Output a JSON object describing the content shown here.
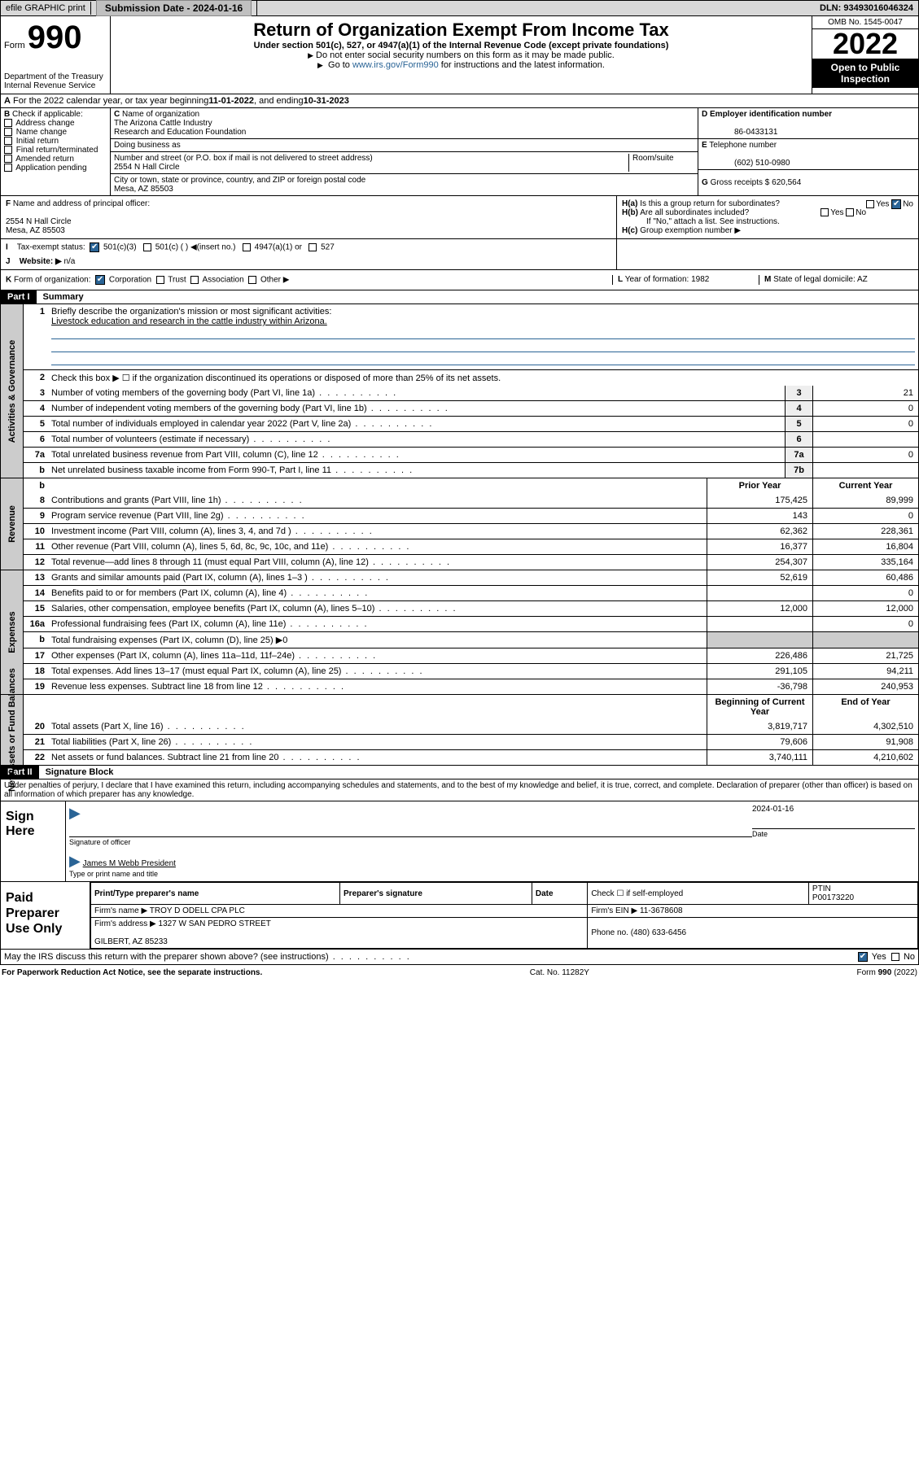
{
  "topbar": {
    "efile": "efile GRAPHIC print",
    "submission_label": "Submission Date",
    "submission_date": "2024-01-16",
    "dln_label": "DLN:",
    "dln": "93493016046324"
  },
  "header": {
    "form_label": "Form",
    "form_no": "990",
    "dept1": "Department of the Treasury",
    "dept2": "Internal Revenue Service",
    "title": "Return of Organization Exempt From Income Tax",
    "subtitle": "Under section 501(c), 527, or 4947(a)(1) of the Internal Revenue Code (except private foundations)",
    "note1": "Do not enter social security numbers on this form as it may be made public.",
    "note2_pre": "Go to ",
    "note2_link": "www.irs.gov/Form990",
    "note2_post": " for instructions and the latest information.",
    "omb": "OMB No. 1545-0047",
    "year": "2022",
    "open": "Open to Public Inspection"
  },
  "lineA": {
    "pre": "For the 2022 calendar year, or tax year beginning ",
    "begin": "11-01-2022",
    "mid": " , and ending ",
    "end": "10-31-2023"
  },
  "boxB": {
    "label": "Check if applicable:",
    "items": [
      "Address change",
      "Name change",
      "Initial return",
      "Final return/terminated",
      "Amended return",
      "Application pending"
    ]
  },
  "boxC": {
    "label": "Name of organization",
    "name1": "The Arizona Cattle Industry",
    "name2": "Research and Education Foundation",
    "dba_label": "Doing business as",
    "addr_label": "Number and street (or P.O. box if mail is not delivered to street address)",
    "room_label": "Room/suite",
    "street": "2554 N Hall Circle",
    "city_label": "City or town, state or province, country, and ZIP or foreign postal code",
    "city": "Mesa, AZ  85503"
  },
  "boxD": {
    "label": "Employer identification number",
    "ein": "86-0433131"
  },
  "boxE": {
    "label": "Telephone number",
    "phone": "(602) 510-0980"
  },
  "boxG": {
    "label": "Gross receipts $",
    "amount": "620,564"
  },
  "boxF": {
    "label": "Name and address of principal officer:",
    "addr1": "2554 N Hall Circle",
    "addr2": "Mesa, AZ  85503"
  },
  "boxH": {
    "a": "Is this a group return for subordinates?",
    "b": "Are all subordinates included?",
    "b_note": "If \"No,\" attach a list. See instructions.",
    "c": "Group exemption number ▶",
    "yes": "Yes",
    "no": "No"
  },
  "boxI": {
    "label": "Tax-exempt status:",
    "opts": [
      "501(c)(3)",
      "501(c) (   ) ◀(insert no.)",
      "4947(a)(1) or",
      "527"
    ]
  },
  "boxJ": {
    "label": "Website: ▶",
    "val": "n/a"
  },
  "boxK": {
    "label": "Form of organization:",
    "opts": [
      "Corporation",
      "Trust",
      "Association",
      "Other ▶"
    ]
  },
  "boxL": {
    "label": "Year of formation:",
    "val": "1982"
  },
  "boxM": {
    "label": "State of legal domicile:",
    "val": "AZ"
  },
  "partI": {
    "hdr": "Part I",
    "title": "Summary",
    "side1": "Activities & Governance",
    "side2": "Revenue",
    "side3": "Expenses",
    "side4": "Net Assets or Fund Balances",
    "l1_label": "Briefly describe the organization's mission or most significant activities:",
    "l1_text": "Livestock education and research in the cattle industry within Arizona.",
    "l2": "Check this box ▶ ☐  if the organization discontinued its operations or disposed of more than 25% of its net assets.",
    "lines_gov": [
      {
        "n": "3",
        "t": "Number of voting members of the governing body (Part VI, line 1a)",
        "b": "3",
        "v": "21"
      },
      {
        "n": "4",
        "t": "Number of independent voting members of the governing body (Part VI, line 1b)",
        "b": "4",
        "v": "0"
      },
      {
        "n": "5",
        "t": "Total number of individuals employed in calendar year 2022 (Part V, line 2a)",
        "b": "5",
        "v": "0"
      },
      {
        "n": "6",
        "t": "Total number of volunteers (estimate if necessary)",
        "b": "6",
        "v": ""
      },
      {
        "n": "7a",
        "t": "Total unrelated business revenue from Part VIII, column (C), line 12",
        "b": "7a",
        "v": "0"
      },
      {
        "n": "b",
        "t": "Net unrelated business taxable income from Form 990-T, Part I, line 11",
        "b": "7b",
        "v": ""
      }
    ],
    "col_prior": "Prior Year",
    "col_curr": "Current Year",
    "lines_rev": [
      {
        "n": "8",
        "t": "Contributions and grants (Part VIII, line 1h)",
        "p": "175,425",
        "c": "89,999"
      },
      {
        "n": "9",
        "t": "Program service revenue (Part VIII, line 2g)",
        "p": "143",
        "c": "0"
      },
      {
        "n": "10",
        "t": "Investment income (Part VIII, column (A), lines 3, 4, and 7d )",
        "p": "62,362",
        "c": "228,361"
      },
      {
        "n": "11",
        "t": "Other revenue (Part VIII, column (A), lines 5, 6d, 8c, 9c, 10c, and 11e)",
        "p": "16,377",
        "c": "16,804"
      },
      {
        "n": "12",
        "t": "Total revenue—add lines 8 through 11 (must equal Part VIII, column (A), line 12)",
        "p": "254,307",
        "c": "335,164"
      }
    ],
    "lines_exp": [
      {
        "n": "13",
        "t": "Grants and similar amounts paid (Part IX, column (A), lines 1–3 )",
        "p": "52,619",
        "c": "60,486"
      },
      {
        "n": "14",
        "t": "Benefits paid to or for members (Part IX, column (A), line 4)",
        "p": "",
        "c": "0"
      },
      {
        "n": "15",
        "t": "Salaries, other compensation, employee benefits (Part IX, column (A), lines 5–10)",
        "p": "12,000",
        "c": "12,000"
      },
      {
        "n": "16a",
        "t": "Professional fundraising fees (Part IX, column (A), line 11e)",
        "p": "",
        "c": "0"
      },
      {
        "n": "b",
        "t": "Total fundraising expenses (Part IX, column (D), line 25) ▶0",
        "p": "",
        "c": "",
        "noval": true
      },
      {
        "n": "17",
        "t": "Other expenses (Part IX, column (A), lines 11a–11d, 11f–24e)",
        "p": "226,486",
        "c": "21,725"
      },
      {
        "n": "18",
        "t": "Total expenses. Add lines 13–17 (must equal Part IX, column (A), line 25)",
        "p": "291,105",
        "c": "94,211"
      },
      {
        "n": "19",
        "t": "Revenue less expenses. Subtract line 18 from line 12",
        "p": "-36,798",
        "c": "240,953"
      }
    ],
    "col_boy": "Beginning of Current Year",
    "col_eoy": "End of Year",
    "lines_net": [
      {
        "n": "20",
        "t": "Total assets (Part X, line 16)",
        "p": "3,819,717",
        "c": "4,302,510"
      },
      {
        "n": "21",
        "t": "Total liabilities (Part X, line 26)",
        "p": "79,606",
        "c": "91,908"
      },
      {
        "n": "22",
        "t": "Net assets or fund balances. Subtract line 21 from line 20",
        "p": "3,740,111",
        "c": "4,210,602"
      }
    ]
  },
  "partII": {
    "hdr": "Part II",
    "title": "Signature Block",
    "decl": "Under penalties of perjury, I declare that I have examined this return, including accompanying schedules and statements, and to the best of my knowledge and belief, it is true, correct, and complete. Declaration of preparer (other than officer) is based on all information of which preparer has any knowledge.",
    "sign_here": "Sign Here",
    "sig_of_officer": "Signature of officer",
    "sig_date": "Date",
    "date_val": "2024-01-16",
    "officer_name": "James M Webb  President",
    "type_name": "Type or print name and title",
    "paid": "Paid Preparer Use Only",
    "pt_name_h": "Print/Type preparer's name",
    "pt_sig_h": "Preparer's signature",
    "pt_date_h": "Date",
    "pt_check": "Check ☐ if self-employed",
    "ptin_h": "PTIN",
    "ptin": "P00173220",
    "firm_name_l": "Firm's name    ▶",
    "firm_name": "TROY D ODELL CPA PLC",
    "firm_ein_l": "Firm's EIN ▶",
    "firm_ein": "11-3678608",
    "firm_addr_l": "Firm's address ▶",
    "firm_addr1": "1327 W SAN PEDRO STREET",
    "firm_addr2": "GILBERT, AZ  85233",
    "phone_l": "Phone no.",
    "phone": "(480) 633-6456",
    "may_irs": "May the IRS discuss this return with the preparer shown above? (see instructions)"
  },
  "footer": {
    "left": "For Paperwork Reduction Act Notice, see the separate instructions.",
    "mid": "Cat. No. 11282Y",
    "right": "Form 990 (2022)"
  },
  "style": {
    "link_color": "#2a6496",
    "checked_bg": "#2a6496"
  }
}
